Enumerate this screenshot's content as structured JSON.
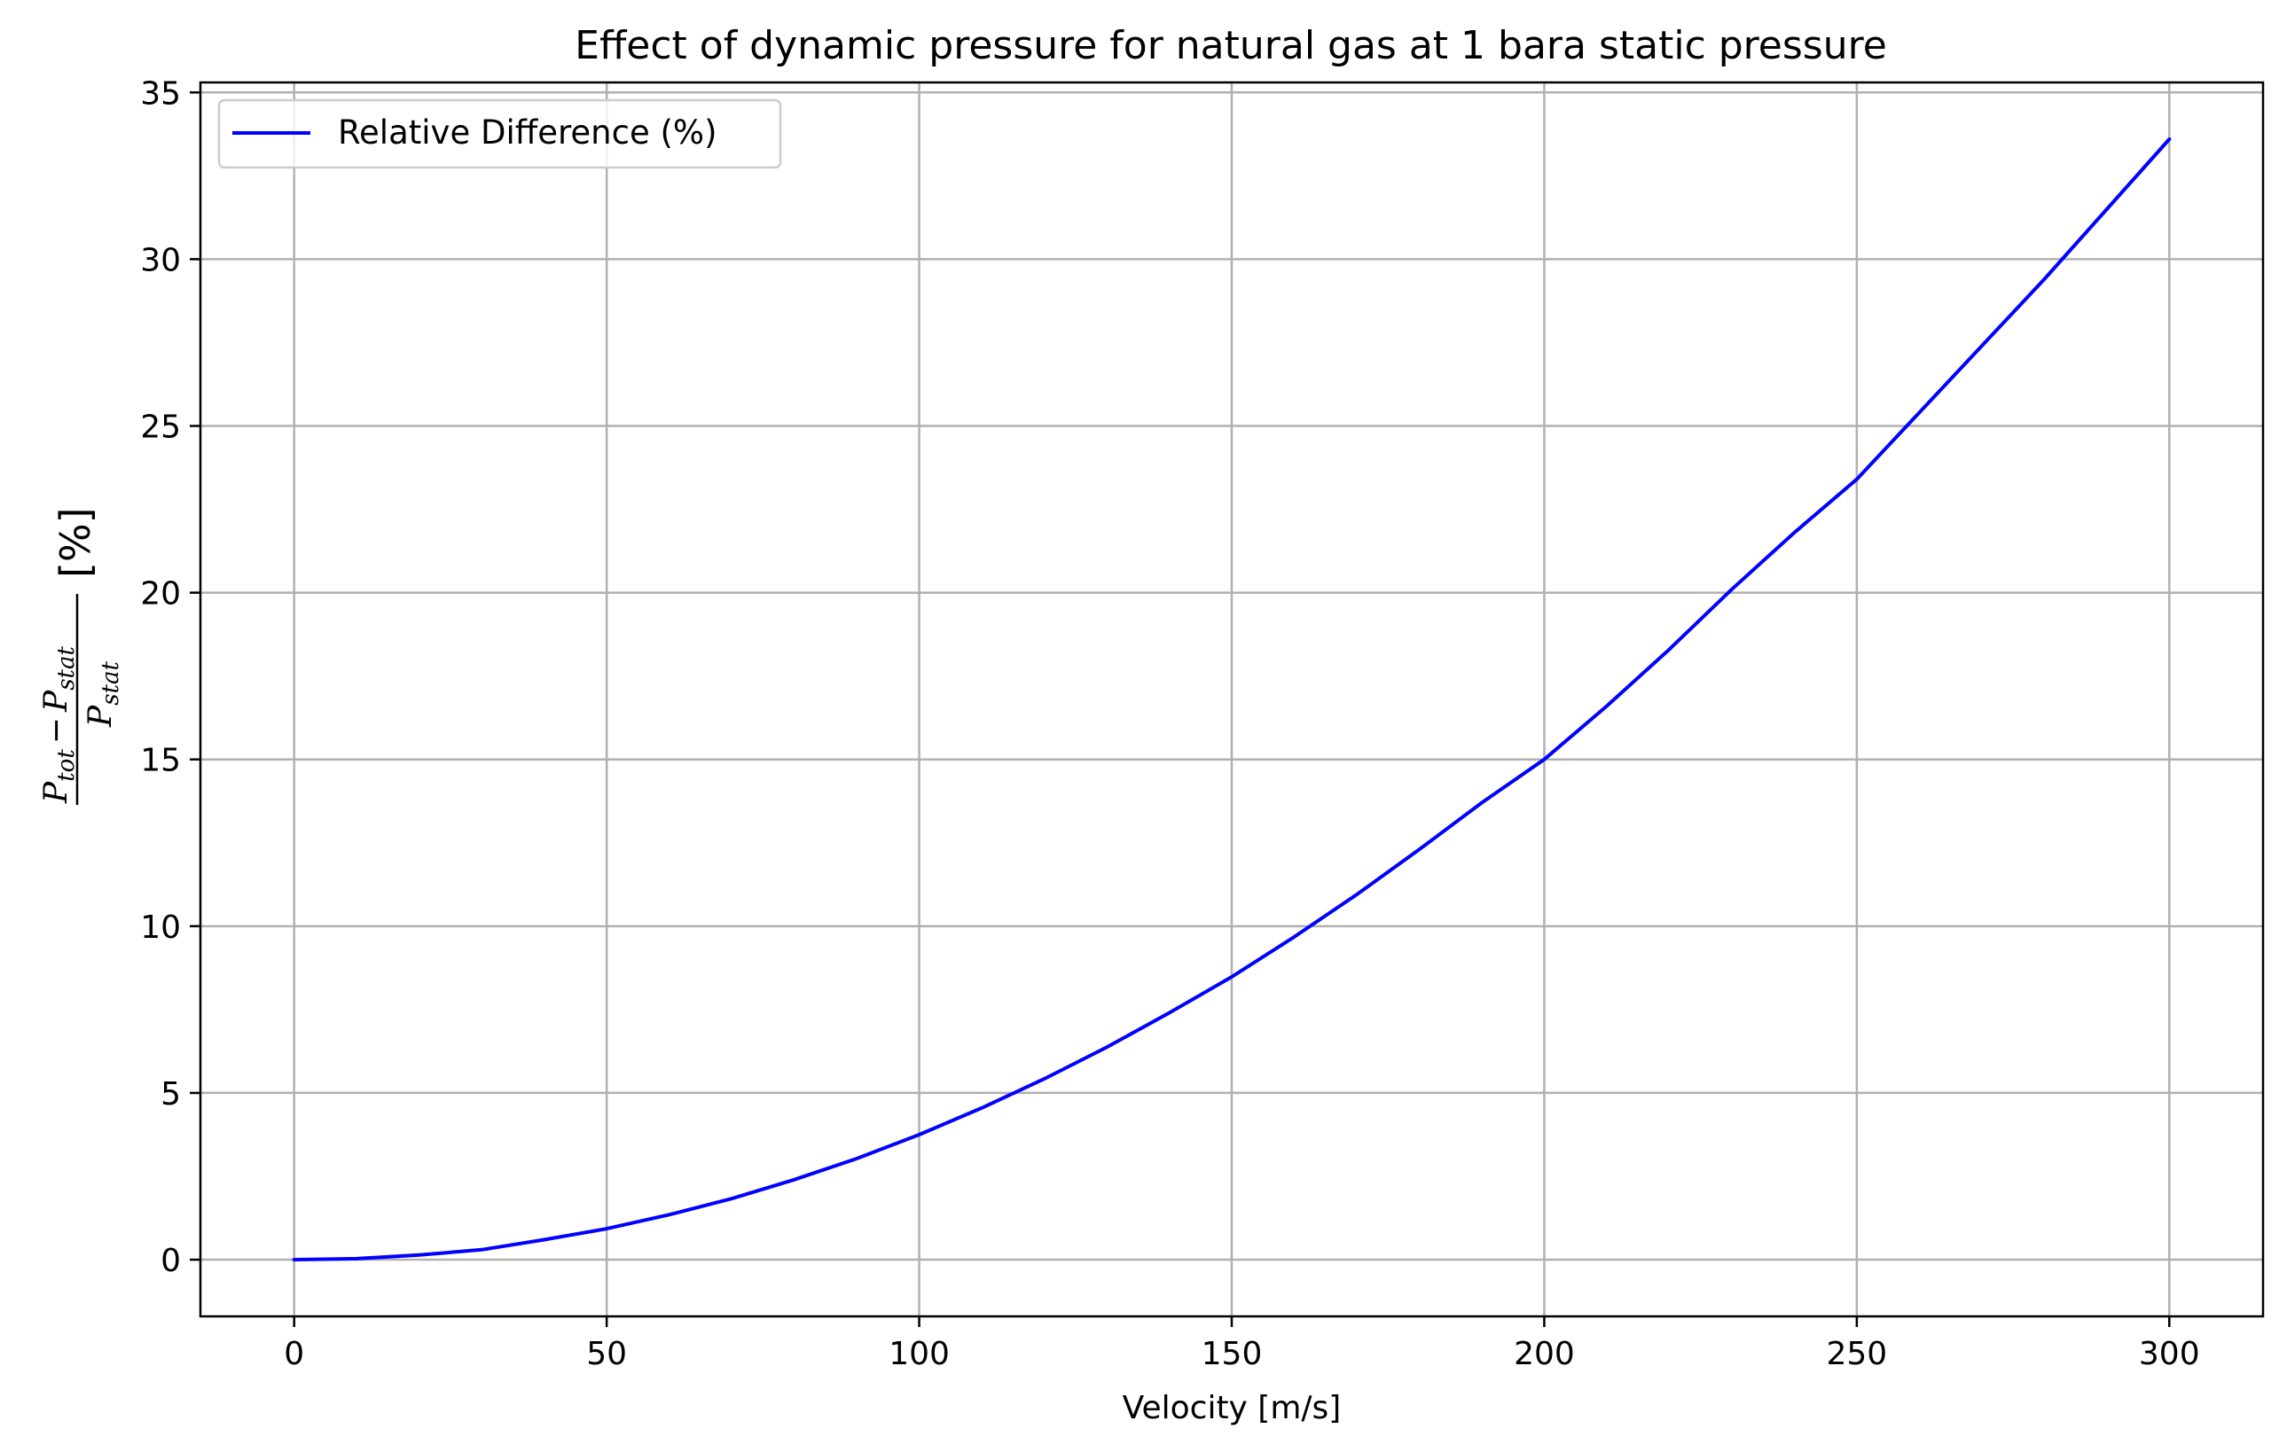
{
  "chart_data": {
    "type": "line",
    "title": "Effect of dynamic pressure for natural gas at 1 bara static pressure",
    "xlabel": "Velocity [m/s]",
    "ylabel": {
      "numerator_main_1": "P",
      "numerator_sub_1": "tot",
      "minus": "−",
      "numerator_main_2": "P",
      "numerator_sub_2": "stat",
      "denominator_main": "P",
      "denominator_sub": "stat",
      "unit": "[%]"
    },
    "xlim": [
      -15,
      315
    ],
    "ylim": [
      -1.7,
      35.3
    ],
    "xticks": [
      0,
      50,
      100,
      150,
      200,
      250,
      300
    ],
    "yticks": [
      0,
      5,
      10,
      15,
      20,
      25,
      30,
      35
    ],
    "grid": true,
    "legend_position": "upper-left",
    "series": [
      {
        "name": "Relative Difference (%)",
        "color": "#0000ff",
        "x": [
          0,
          10,
          20,
          30,
          40,
          50,
          60,
          70,
          80,
          90,
          100,
          110,
          120,
          130,
          140,
          150,
          160,
          170,
          180,
          190,
          200,
          210,
          220,
          230,
          240,
          250,
          260,
          270,
          280,
          290,
          300
        ],
        "y": [
          0,
          0.03,
          0.14,
          0.3,
          0.6,
          0.93,
          1.35,
          1.83,
          2.4,
          3.03,
          3.75,
          4.55,
          5.42,
          6.37,
          7.4,
          8.48,
          9.68,
          10.95,
          12.3,
          13.7,
          15.0,
          16.6,
          18.3,
          20.1,
          21.8,
          23.4,
          25.4,
          27.4,
          29.4,
          31.5,
          33.6
        ]
      }
    ]
  }
}
